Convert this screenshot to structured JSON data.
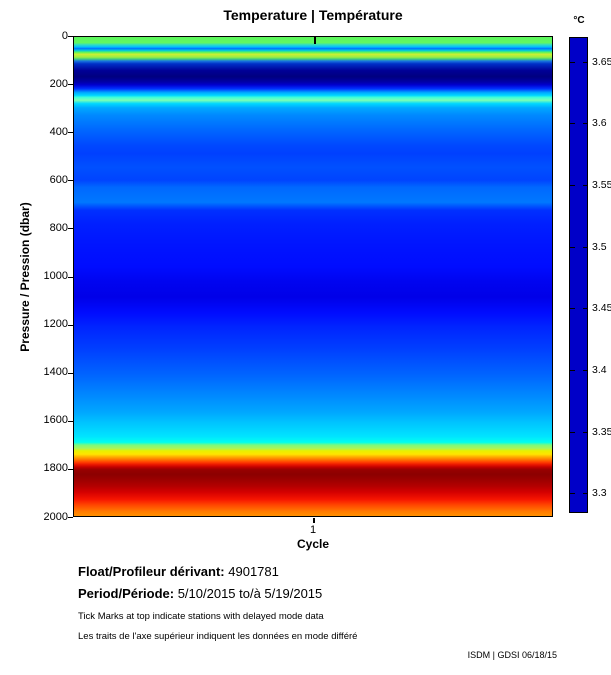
{
  "title": "Temperature | Température",
  "axes": {
    "y_label": "Pressure / Pression (dbar)",
    "y_tick_labels": [
      "0",
      "200",
      "400",
      "600",
      "800",
      "1000",
      "1200",
      "1400",
      "1600",
      "1800",
      "2000"
    ],
    "x_label": "Cycle",
    "x_tick_label": "1"
  },
  "colorbar": {
    "unit": "°C",
    "tick_labels": [
      "3.65",
      "3.6",
      "3.55",
      "3.5",
      "3.45",
      "3.4",
      "3.35",
      "3.3"
    ],
    "bar_color": "#0000C8"
  },
  "footer": {
    "float_label": "Float/Profileur dérivant:",
    "float_value": " 4901781",
    "period_label": "Period/Période:",
    "period_value": " 5/10/2015 to/à  5/19/2015",
    "note_en": "Tick Marks at top indicate stations with delayed mode data",
    "note_fr": "Les traits de l'axe supérieur indiquent les données en mode différé",
    "credit": "ISDM | GDSI  06/18/15"
  },
  "chart_data": {
    "type": "heatmap",
    "title": "Temperature | Température",
    "xlabel": "Cycle",
    "ylabel": "Pressure / Pression (dbar)",
    "x_categories": [
      1
    ],
    "y_range_dbar": [
      0,
      2000
    ],
    "y_tick_step_dbar": 200,
    "colorbar": {
      "unit": "°C",
      "range": [
        3.3,
        3.65
      ],
      "tick_step": 0.05,
      "displayed_color": "#0000C8"
    },
    "profile_bands": [
      {
        "pressure_dbar": [
          0,
          25
        ],
        "color": "green",
        "temp_c_est": 3.53
      },
      {
        "pressure_dbar": [
          25,
          40
        ],
        "color": "cyan with thin blue line",
        "temp_c_est": 3.46
      },
      {
        "pressure_dbar": [
          40,
          60
        ],
        "color": "cyan-green",
        "temp_c_est": 3.5
      },
      {
        "pressure_dbar": [
          60,
          85
        ],
        "color": "yellow-green",
        "temp_c_est": 3.56
      },
      {
        "pressure_dbar": [
          85,
          105
        ],
        "color": "teal to blue",
        "temp_c_est": 3.44
      },
      {
        "pressure_dbar": [
          105,
          200
        ],
        "color": "dark navy (minimum)",
        "temp_c_est": 3.3
      },
      {
        "pressure_dbar": [
          200,
          240
        ],
        "color": "blue to cyan",
        "temp_c_est": 3.45
      },
      {
        "pressure_dbar": [
          240,
          290
        ],
        "color": "bright cyan-aqua",
        "temp_c_est": 3.49
      },
      {
        "pressure_dbar": [
          290,
          480
        ],
        "color": "light blue",
        "temp_c_est": 3.43
      },
      {
        "pressure_dbar": [
          480,
          780
        ],
        "color": "blue",
        "temp_c_est": 3.39
      },
      {
        "pressure_dbar": [
          780,
          1250
        ],
        "color": "deep blue (local minimum)",
        "temp_c_est": 3.35
      },
      {
        "pressure_dbar": [
          1250,
          1550
        ],
        "color": "blue lightening",
        "temp_c_est": 3.4
      },
      {
        "pressure_dbar": [
          1550,
          1700
        ],
        "color": "cyan",
        "temp_c_est": 3.48
      },
      {
        "pressure_dbar": [
          1700,
          1730
        ],
        "color": "green-yellow",
        "temp_c_est": 3.55
      },
      {
        "pressure_dbar": [
          1730,
          1760
        ],
        "color": "yellow-orange",
        "temp_c_est": 3.59
      },
      {
        "pressure_dbar": [
          1760,
          1790
        ],
        "color": "red",
        "temp_c_est": 3.63
      },
      {
        "pressure_dbar": [
          1790,
          1900
        ],
        "color": "dark red (maximum)",
        "temp_c_est": 3.67
      },
      {
        "pressure_dbar": [
          1900,
          1970
        ],
        "color": "red",
        "temp_c_est": 3.64
      },
      {
        "pressure_dbar": [
          1970,
          2000
        ],
        "color": "orange",
        "temp_c_est": 3.61
      }
    ],
    "gradient_stops": [
      {
        "pct": 0.0,
        "color": "#5CF65C"
      },
      {
        "pct": 1.2,
        "color": "#62F862"
      },
      {
        "pct": 1.6,
        "color": "#33E0C0"
      },
      {
        "pct": 2.1,
        "color": "#00BFFF"
      },
      {
        "pct": 2.4,
        "color": "#0070FF"
      },
      {
        "pct": 2.8,
        "color": "#00C8E0"
      },
      {
        "pct": 3.2,
        "color": "#5CF65C"
      },
      {
        "pct": 3.6,
        "color": "#CCF033"
      },
      {
        "pct": 4.2,
        "color": "#9BEE44"
      },
      {
        "pct": 4.6,
        "color": "#44D07C"
      },
      {
        "pct": 5.0,
        "color": "#1A78E0"
      },
      {
        "pct": 5.6,
        "color": "#0030C8"
      },
      {
        "pct": 7.0,
        "color": "#000096"
      },
      {
        "pct": 8.3,
        "color": "#000080"
      },
      {
        "pct": 9.4,
        "color": "#0000A8"
      },
      {
        "pct": 10.0,
        "color": "#0000D0"
      },
      {
        "pct": 10.8,
        "color": "#0030FF"
      },
      {
        "pct": 11.6,
        "color": "#00AAFF"
      },
      {
        "pct": 12.2,
        "color": "#00D8FF"
      },
      {
        "pct": 12.6,
        "color": "#40FFD8"
      },
      {
        "pct": 13.2,
        "color": "#7CFFB4"
      },
      {
        "pct": 13.9,
        "color": "#00D8FF"
      },
      {
        "pct": 14.8,
        "color": "#00A8FF"
      },
      {
        "pct": 16.4,
        "color": "#0088FF"
      },
      {
        "pct": 19.5,
        "color": "#0066FF"
      },
      {
        "pct": 22.7,
        "color": "#0048FF"
      },
      {
        "pct": 24.3,
        "color": "#0040FF"
      },
      {
        "pct": 27.2,
        "color": "#0050FF"
      },
      {
        "pct": 29.9,
        "color": "#0044FF"
      },
      {
        "pct": 31.4,
        "color": "#0068FF"
      },
      {
        "pct": 34.5,
        "color": "#0078FF"
      },
      {
        "pct": 36.2,
        "color": "#0030FF"
      },
      {
        "pct": 38.9,
        "color": "#0020FF"
      },
      {
        "pct": 43.5,
        "color": "#0014FF"
      },
      {
        "pct": 48.0,
        "color": "#000CFF"
      },
      {
        "pct": 51.1,
        "color": "#0004F0"
      },
      {
        "pct": 54.3,
        "color": "#0000E8"
      },
      {
        "pct": 57.6,
        "color": "#000CFF"
      },
      {
        "pct": 60.5,
        "color": "#0024FF"
      },
      {
        "pct": 65.3,
        "color": "#0040FF"
      },
      {
        "pct": 70.5,
        "color": "#0064FF"
      },
      {
        "pct": 75.7,
        "color": "#0090FF"
      },
      {
        "pct": 78.4,
        "color": "#00A8FF"
      },
      {
        "pct": 80.5,
        "color": "#00C4FF"
      },
      {
        "pct": 83.4,
        "color": "#00E4FF"
      },
      {
        "pct": 84.6,
        "color": "#00FFF0"
      },
      {
        "pct": 85.2,
        "color": "#7CFA7C"
      },
      {
        "pct": 85.9,
        "color": "#AAF55A"
      },
      {
        "pct": 86.4,
        "color": "#E8F000"
      },
      {
        "pct": 87.1,
        "color": "#FFE400"
      },
      {
        "pct": 87.7,
        "color": "#FFA800"
      },
      {
        "pct": 88.2,
        "color": "#FF7800"
      },
      {
        "pct": 88.8,
        "color": "#FF3C00"
      },
      {
        "pct": 89.3,
        "color": "#E81400"
      },
      {
        "pct": 89.8,
        "color": "#C00000"
      },
      {
        "pct": 90.3,
        "color": "#980000"
      },
      {
        "pct": 91.3,
        "color": "#8C0000"
      },
      {
        "pct": 92.3,
        "color": "#9A0000"
      },
      {
        "pct": 93.8,
        "color": "#B40000"
      },
      {
        "pct": 95.0,
        "color": "#D40000"
      },
      {
        "pct": 96.5,
        "color": "#F61400"
      },
      {
        "pct": 97.7,
        "color": "#FF4600"
      },
      {
        "pct": 99.0,
        "color": "#FF7800"
      },
      {
        "pct": 100.0,
        "color": "#FF9000"
      }
    ]
  }
}
